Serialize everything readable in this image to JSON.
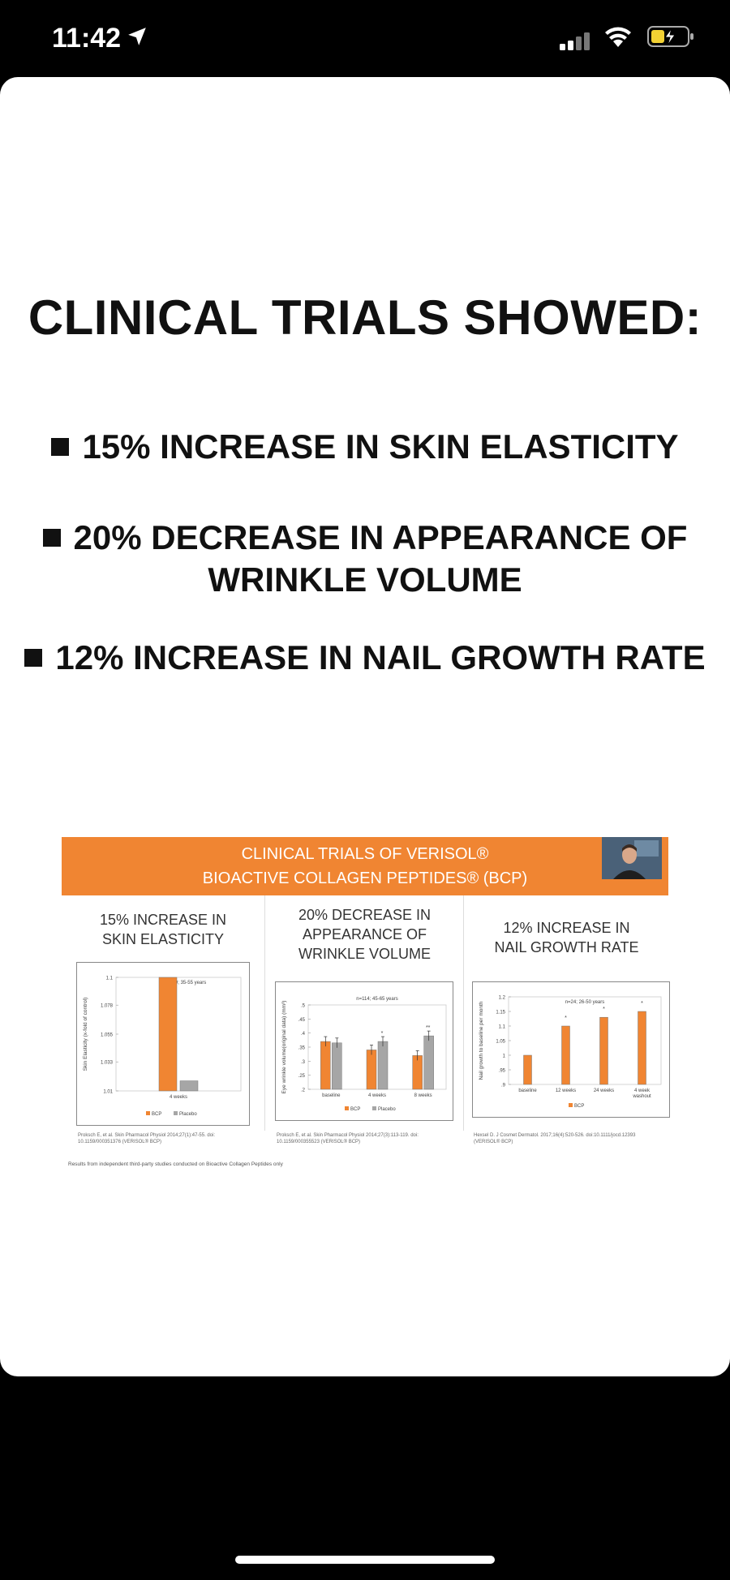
{
  "status_bar": {
    "time": "11:42"
  },
  "slide_title": "CLINICAL TRIALS SHOWED:",
  "bullets": {
    "b1": "15% INCREASE IN SKIN ELASTICITY",
    "b2_line1": "20% DECREASE IN APPEARANCE OF",
    "b2_line2": "WRINKLE VOLUME",
    "b3": "12% INCREASE IN NAIL GROWTH RATE"
  },
  "embedded_slide": {
    "banner_line1": "CLINICAL TRIALS OF VERISOL®",
    "banner_line2": "BIOACTIVE COLLAGEN PEPTIDES® (BCP)",
    "footer": "Results from independent third-party studies conducted on Bioactive Collagen Peptides only",
    "panels": {
      "skin": {
        "title_line1": "15% INCREASE IN",
        "title_line2": "SKIN ELASTICITY",
        "ref_line1": "Proksch E, et al. Skin Pharmacol Physiol 2014;27(1):47-55. doi:",
        "ref_line2": "10.1159/000351376 (VERISOL® BCP)"
      },
      "wrinkle": {
        "title_line1": "20% DECREASE IN",
        "title_line2": "APPEARANCE OF",
        "title_line3": "WRINKLE VOLUME",
        "ref_line1": "Proksch E, et al. Skin Pharmacol Physiol 2014;27(3):113-119. doi:",
        "ref_line2": "10.1159/000355523 (VERISOL® BCP)"
      },
      "nail": {
        "title_line1": "12% INCREASE IN",
        "title_line2": "NAIL GROWTH RATE",
        "ref_line1": "Hexsel D. J Cosmet Dermatol. 2017;16(4):520-526. doi:10.1111/jocd.12393",
        "ref_line2": "(VERISOL® BCP)"
      }
    }
  },
  "chart_data": [
    {
      "type": "bar",
      "annotation": "n=69; 35-55 years",
      "ylabel": "Skin Elasticity (x-fold of control)",
      "yticks": [
        "1.1",
        "1.078",
        "1.055",
        "1.033",
        "1.01"
      ],
      "ylim": [
        1.01,
        1.1
      ],
      "categories": [
        "4 weeks"
      ],
      "series": [
        {
          "name": "BCP",
          "color": "#f08532",
          "values": [
            1.1
          ]
        },
        {
          "name": "Placebo",
          "color": "#a6a6a6",
          "values": [
            1.018
          ]
        }
      ]
    },
    {
      "type": "bar",
      "annotation": "n=114; 45-65 years",
      "ylabel": "Eye wrinkle volume(original data) (mm³)",
      "yticks": [
        ".5",
        ".45",
        ".4",
        ".35",
        ".3",
        ".25",
        ".2"
      ],
      "ylim": [
        0.2,
        0.5
      ],
      "categories": [
        "baseline",
        "4 weeks",
        "8 weeks"
      ],
      "significance": [
        "",
        "*",
        "**"
      ],
      "series": [
        {
          "name": "BCP",
          "color": "#f08532",
          "values": [
            0.37,
            0.34,
            0.32
          ]
        },
        {
          "name": "Placebo",
          "color": "#a6a6a6",
          "values": [
            0.365,
            0.37,
            0.39
          ]
        }
      ]
    },
    {
      "type": "bar",
      "annotation": "n=24; 26-50 years",
      "ylabel": "Nail growth to baseline per month",
      "yticks": [
        "1.2",
        "1.15",
        "1.1",
        "1.05",
        "1",
        ".95",
        ".9"
      ],
      "ylim": [
        0.9,
        1.2
      ],
      "categories": [
        "baseline",
        "12 weeks",
        "24 weeks",
        "4 week washout"
      ],
      "significance": [
        "",
        "*",
        "*",
        "*"
      ],
      "series": [
        {
          "name": "BCP",
          "color": "#f08532",
          "values": [
            1.0,
            1.1,
            1.13,
            1.15
          ]
        }
      ]
    }
  ]
}
